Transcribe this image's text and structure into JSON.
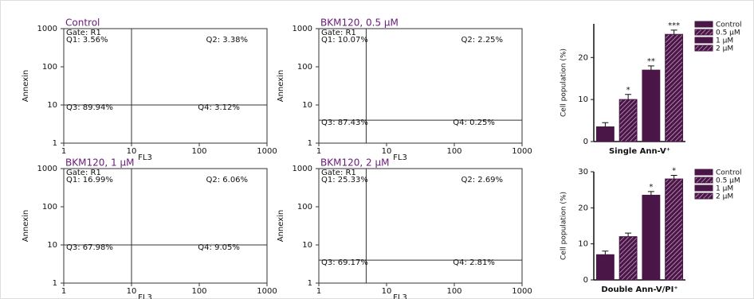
{
  "chart_data": [
    {
      "type": "flow",
      "title": "Control",
      "gate": "Gate: R1",
      "quadrants": [
        "Q1: 3.56%",
        "Q2: 3.38%",
        "Q3: 89.94%",
        "Q4: 3.12%"
      ],
      "xlabel": "FL3",
      "ylabel": "Annexin",
      "log": true,
      "xlim": [
        1,
        1000
      ],
      "ylim": [
        1,
        1000
      ],
      "xticks": [
        1,
        10,
        100,
        1000
      ],
      "yticks": [
        1,
        10,
        100,
        1000
      ],
      "gate_x": 10,
      "gate_y": 10,
      "color": "#1a86c9"
    },
    {
      "type": "flow",
      "title": "BKM120, 0.5 μM",
      "gate": "Gate: R1",
      "quadrants": [
        "Q1: 10.07%",
        "Q2: 2.25%",
        "Q3: 87.43%",
        "Q4: 0.25%"
      ],
      "xlabel": "FL3",
      "ylabel": "Annexin",
      "log": true,
      "xlim": [
        1,
        1000
      ],
      "ylim": [
        1,
        1000
      ],
      "xticks": [
        1,
        10,
        100,
        1000
      ],
      "yticks": [
        1,
        10,
        100,
        1000
      ],
      "gate_x": 5,
      "gate_y": 4,
      "color": "#1a86c9"
    },
    {
      "type": "flow",
      "title": "BKM120, 1 μM",
      "gate": "Gate: R1",
      "quadrants": [
        "Q1: 16.99%",
        "Q2: 6.06%",
        "Q3: 67.98%",
        "Q4: 9.05%"
      ],
      "xlabel": "FL3",
      "ylabel": "Annexin",
      "log": true,
      "xlim": [
        1,
        1000
      ],
      "ylim": [
        1,
        1000
      ],
      "xticks": [
        1,
        10,
        100,
        1000
      ],
      "yticks": [
        1,
        10,
        100,
        1000
      ],
      "gate_x": 10,
      "gate_y": 10,
      "color": "#1a86c9"
    },
    {
      "type": "flow",
      "title": "BKM120, 2 μM",
      "gate": "Gate: R1",
      "quadrants": [
        "Q1: 25.33%",
        "Q2: 2.69%",
        "Q3: 69.17%",
        "Q4: 2.81%"
      ],
      "xlabel": "FL3",
      "ylabel": "Annexin",
      "log": true,
      "xlim": [
        1,
        1000
      ],
      "ylim": [
        1,
        1000
      ],
      "xticks": [
        1,
        10,
        100,
        1000
      ],
      "yticks": [
        1,
        10,
        100,
        1000
      ],
      "gate_x": 5,
      "gate_y": 4,
      "color": "#1a86c9"
    },
    {
      "type": "bar",
      "xlabel": "Single Ann-V⁺",
      "ylabel": "Cell population (%)",
      "categories": [
        "Control",
        "0.5 μM",
        "1 μM",
        "2 μM"
      ],
      "values": [
        3.5,
        10,
        17,
        25.5
      ],
      "errors": [
        1,
        1.2,
        1,
        1
      ],
      "stars": [
        null,
        "*",
        "**",
        "***"
      ],
      "hatch": [
        false,
        true,
        false,
        true
      ],
      "color": "#4a1547",
      "ylim": [
        0,
        28
      ],
      "yticks": [
        0,
        10,
        20
      ]
    },
    {
      "type": "bar",
      "xlabel": "Double Ann-V/PI⁺",
      "ylabel": "Cell population (%)",
      "categories": [
        "Control",
        "0.5 μM",
        "1 μM",
        "2 μM"
      ],
      "values": [
        7,
        12,
        23.5,
        28
      ],
      "errors": [
        1,
        1,
        1,
        1
      ],
      "stars": [
        null,
        null,
        "*",
        "*"
      ],
      "hatch": [
        false,
        true,
        false,
        true
      ],
      "color": "#4a1547",
      "ylim": [
        0,
        30
      ],
      "yticks": [
        0,
        10,
        20,
        30
      ]
    }
  ]
}
